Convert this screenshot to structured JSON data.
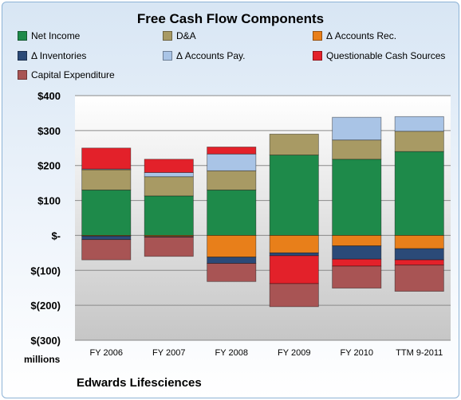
{
  "chart_data": {
    "type": "bar",
    "stacked": true,
    "title": "Free Cash Flow Components",
    "unit_label": "millions",
    "company": "Edwards Lifesciences",
    "categories": [
      "FY 2006",
      "FY 2007",
      "FY 2008",
      "FY 2009",
      "FY 2010",
      "TTM 9-2011"
    ],
    "y_ticks": [
      "$400",
      "$300",
      "$200",
      "$100",
      "$-",
      "$(100)",
      "$(200)",
      "$(300)"
    ],
    "ylim": [
      -300,
      400
    ],
    "grid": true,
    "legend_position": "top",
    "series": [
      {
        "name": "Net Income",
        "color": "#1e8a4a",
        "values": [
          130,
          113,
          130,
          230,
          218,
          240
        ]
      },
      {
        "name": "D&A",
        "color": "#a89a64",
        "values": [
          58,
          55,
          55,
          60,
          55,
          58
        ]
      },
      {
        "name": "Δ Accounts Rec.",
        "color": "#e87f1a",
        "values": [
          -2,
          -3,
          -62,
          -50,
          -30,
          -38
        ]
      },
      {
        "name": "Δ Inventories",
        "color": "#2b4a78",
        "values": [
          -10,
          -2,
          -18,
          -8,
          -38,
          -32
        ]
      },
      {
        "name": "Δ Accounts Pay.",
        "color": "#a9c4e6",
        "values": [
          2,
          12,
          48,
          0,
          65,
          42
        ]
      },
      {
        "name": "Questionable Cash Sources",
        "color": "#e3212a",
        "values": [
          60,
          38,
          20,
          -80,
          -20,
          -15
        ]
      },
      {
        "name": "Capital Expenditure",
        "color": "#a85454",
        "values": [
          -58,
          -55,
          -52,
          -66,
          -63,
          -75
        ]
      }
    ]
  }
}
